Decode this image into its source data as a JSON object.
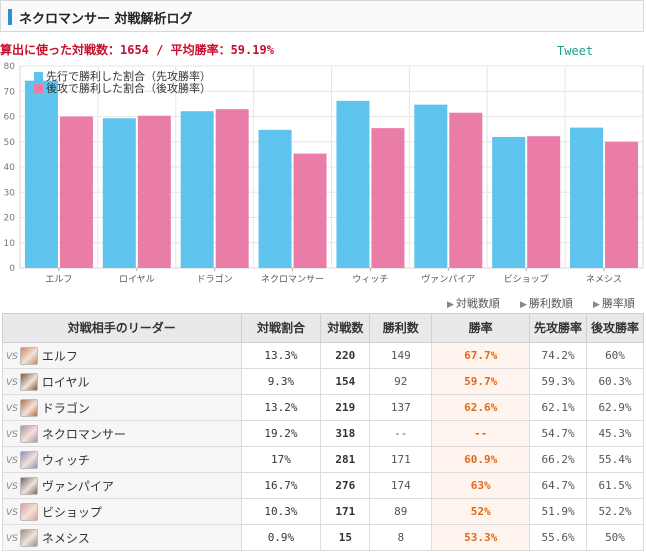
{
  "header": {
    "title": "ネクロマンサー 対戦解析ログ"
  },
  "summary": "算出に使った対戦数：1654 / 平均勝率：59.19%",
  "tweet": "Tweet",
  "sort_links": [
    "対戦数順",
    "勝利数順",
    "勝率順"
  ],
  "colors": {
    "first": "#5ec3ed",
    "second": "#e97da8"
  },
  "chart_data": {
    "type": "bar",
    "categories": [
      "エルフ",
      "ロイヤル",
      "ドラゴン",
      "ネクロマンサー",
      "ウィッチ",
      "ヴァンパイア",
      "ビショップ",
      "ネメシス"
    ],
    "series": [
      {
        "name": "先行で勝利した割合（先攻勝率）",
        "values": [
          74.2,
          59.3,
          62.1,
          54.7,
          66.2,
          64.7,
          51.9,
          55.6
        ]
      },
      {
        "name": "後攻で勝利した割合（後攻勝率）",
        "values": [
          60,
          60.3,
          62.9,
          45.3,
          55.4,
          61.5,
          52.2,
          50
        ]
      }
    ],
    "ylim": [
      0,
      80
    ],
    "yticks": [
      0,
      10,
      20,
      30,
      40,
      50,
      60,
      70,
      80
    ],
    "grid": true,
    "legend": "top-left"
  },
  "table": {
    "headers": [
      "対戦相手のリーダー",
      "対戦割合",
      "対戦数",
      "勝利数",
      "勝率",
      "先攻勝率",
      "後攻勝率"
    ],
    "vs": "VS",
    "rows": [
      {
        "leader": "エルフ",
        "share": "13.3%",
        "matches": "220",
        "wins": "149",
        "rate": "67.7%",
        "first": "74.2%",
        "second": "60%",
        "avatar": "#c98a6a"
      },
      {
        "leader": "ロイヤル",
        "share": "9.3%",
        "matches": "154",
        "wins": "92",
        "rate": "59.7%",
        "first": "59.3%",
        "second": "60.3%",
        "avatar": "#7a5a44"
      },
      {
        "leader": "ドラゴン",
        "share": "13.2%",
        "matches": "219",
        "wins": "137",
        "rate": "62.6%",
        "first": "62.1%",
        "second": "62.9%",
        "avatar": "#a9734c"
      },
      {
        "leader": "ネクロマンサー",
        "share": "19.2%",
        "matches": "318",
        "wins": "--",
        "rate": "--",
        "first": "54.7%",
        "second": "45.3%",
        "avatar": "#b58fa6"
      },
      {
        "leader": "ウィッチ",
        "share": "17%",
        "matches": "281",
        "wins": "171",
        "rate": "60.9%",
        "first": "66.2%",
        "second": "55.4%",
        "avatar": "#8f8fb8"
      },
      {
        "leader": "ヴァンパイア",
        "share": "16.7%",
        "matches": "276",
        "wins": "174",
        "rate": "63%",
        "first": "64.7%",
        "second": "61.5%",
        "avatar": "#6e6a72"
      },
      {
        "leader": "ビショップ",
        "share": "10.3%",
        "matches": "171",
        "wins": "89",
        "rate": "52%",
        "first": "51.9%",
        "second": "52.2%",
        "avatar": "#d8a0a8"
      },
      {
        "leader": "ネメシス",
        "share": "0.9%",
        "matches": "15",
        "wins": "8",
        "rate": "53.3%",
        "first": "55.6%",
        "second": "50%",
        "avatar": "#9a8e86"
      }
    ]
  }
}
